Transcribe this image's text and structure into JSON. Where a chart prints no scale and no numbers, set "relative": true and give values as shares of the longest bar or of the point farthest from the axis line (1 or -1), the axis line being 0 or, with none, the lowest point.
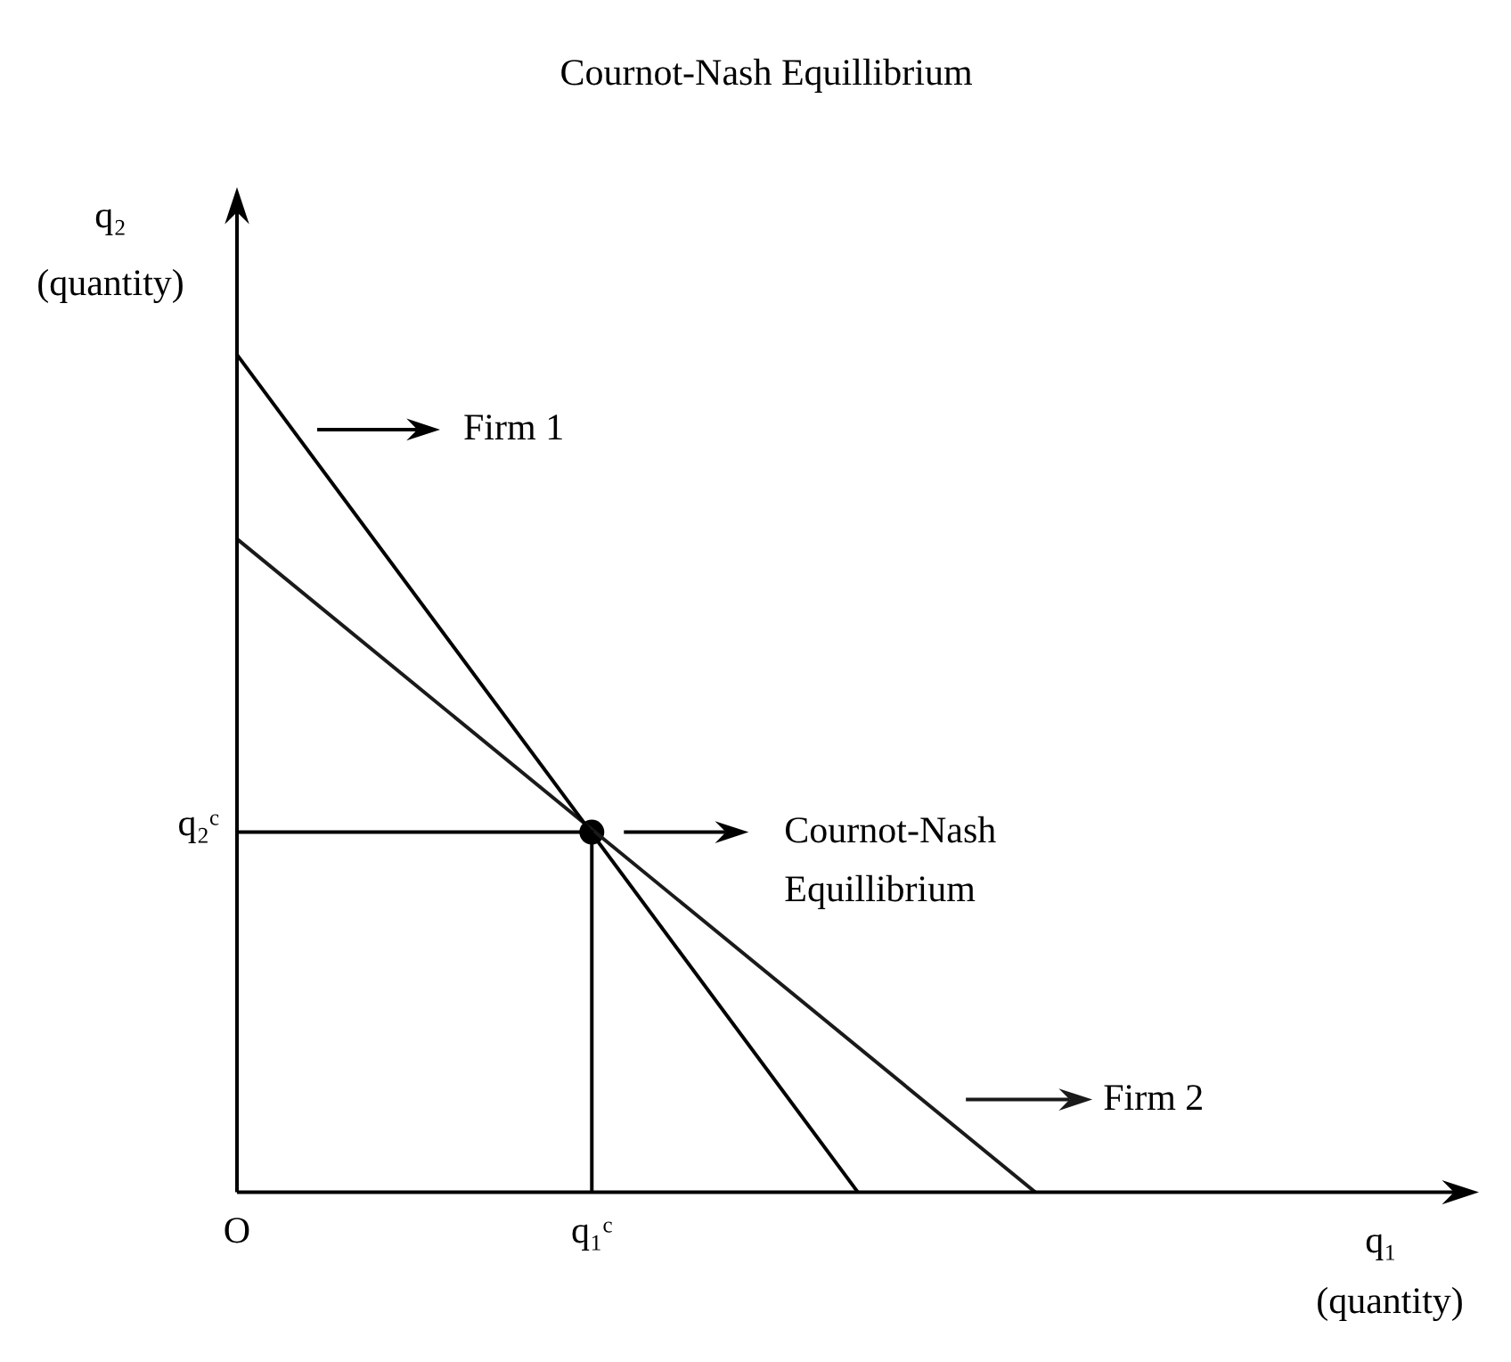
{
  "chart_data": {
    "type": "line",
    "title": "Cournot-Nash Equillibrium",
    "xlabel": "q₁ (quantity)",
    "ylabel": "q₂ (quantity)",
    "relative": true,
    "grid": false,
    "legend": "top left",
    "tick_labels": "x",
    "categories": [
      "O",
      null,
      null,
      null,
      "q₁ᶜ",
      null,
      null,
      null,
      null,
      null,
      null,
      null,
      null,
      null,
      null
    ],
    "series": [
      {
        "name": "Firm 1",
        "color": "#000000",
        "values": [
          1,
          null,
          null,
          null,
          null,
          null,
          null,
          0,
          null,
          null,
          null,
          null,
          null,
          null,
          null
        ]
      },
      {
        "name": "Firm 2",
        "color": "#1a1a1a",
        "values": [
          0.78,
          null,
          null,
          null,
          null,
          null,
          null,
          null,
          null,
          0,
          null,
          null,
          null,
          null,
          null
        ]
      },
      {
        "type": "scatter",
        "color": "#000000",
        "values": [
          null,
          null,
          null,
          null,
          0.43,
          null,
          null,
          null,
          null,
          null,
          null,
          null,
          null,
          null,
          null
        ],
        "marker": "circle"
      }
    ],
    "annotations": [
      "Cournot-Nash Equillibrium",
      "q₂ᶜ"
    ]
  }
}
